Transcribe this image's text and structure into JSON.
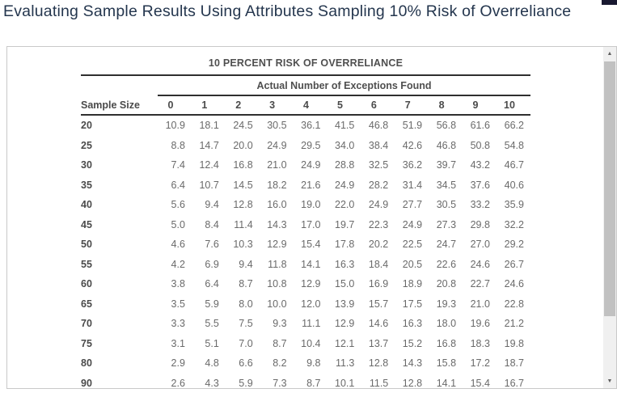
{
  "page": {
    "title": "Evaluating Sample Results Using Attributes Sampling 10% Risk of Overreliance"
  },
  "panel": {
    "table": {
      "title": "10 PERCENT RISK OF OVERRELIANCE",
      "span_header": "Actual Number of Exceptions Found",
      "row_header": "Sample Size",
      "columns": [
        "0",
        "1",
        "2",
        "3",
        "4",
        "5",
        "6",
        "7",
        "8",
        "9",
        "10"
      ],
      "rows": [
        {
          "sample_size": "20",
          "values": [
            "10.9",
            "18.1",
            "24.5",
            "30.5",
            "36.1",
            "41.5",
            "46.8",
            "51.9",
            "56.8",
            "61.6",
            "66.2"
          ]
        },
        {
          "sample_size": "25",
          "values": [
            "8.8",
            "14.7",
            "20.0",
            "24.9",
            "29.5",
            "34.0",
            "38.4",
            "42.6",
            "46.8",
            "50.8",
            "54.8"
          ]
        },
        {
          "sample_size": "30",
          "values": [
            "7.4",
            "12.4",
            "16.8",
            "21.0",
            "24.9",
            "28.8",
            "32.5",
            "36.2",
            "39.7",
            "43.2",
            "46.7"
          ]
        },
        {
          "sample_size": "35",
          "values": [
            "6.4",
            "10.7",
            "14.5",
            "18.2",
            "21.6",
            "24.9",
            "28.2",
            "31.4",
            "34.5",
            "37.6",
            "40.6"
          ]
        },
        {
          "sample_size": "40",
          "values": [
            "5.6",
            "9.4",
            "12.8",
            "16.0",
            "19.0",
            "22.0",
            "24.9",
            "27.7",
            "30.5",
            "33.2",
            "35.9"
          ]
        },
        {
          "sample_size": "45",
          "values": [
            "5.0",
            "8.4",
            "11.4",
            "14.3",
            "17.0",
            "19.7",
            "22.3",
            "24.9",
            "27.3",
            "29.8",
            "32.2"
          ]
        },
        {
          "sample_size": "50",
          "values": [
            "4.6",
            "7.6",
            "10.3",
            "12.9",
            "15.4",
            "17.8",
            "20.2",
            "22.5",
            "24.7",
            "27.0",
            "29.2"
          ]
        },
        {
          "sample_size": "55",
          "values": [
            "4.2",
            "6.9",
            "9.4",
            "11.8",
            "14.1",
            "16.3",
            "18.4",
            "20.5",
            "22.6",
            "24.6",
            "26.7"
          ]
        },
        {
          "sample_size": "60",
          "values": [
            "3.8",
            "6.4",
            "8.7",
            "10.8",
            "12.9",
            "15.0",
            "16.9",
            "18.9",
            "20.8",
            "22.7",
            "24.6"
          ]
        },
        {
          "sample_size": "65",
          "values": [
            "3.5",
            "5.9",
            "8.0",
            "10.0",
            "12.0",
            "13.9",
            "15.7",
            "17.5",
            "19.3",
            "21.0",
            "22.8"
          ]
        },
        {
          "sample_size": "70",
          "values": [
            "3.3",
            "5.5",
            "7.5",
            "9.3",
            "11.1",
            "12.9",
            "14.6",
            "16.3",
            "18.0",
            "19.6",
            "21.2"
          ]
        },
        {
          "sample_size": "75",
          "values": [
            "3.1",
            "5.1",
            "7.0",
            "8.7",
            "10.4",
            "12.1",
            "13.7",
            "15.2",
            "16.8",
            "18.3",
            "19.8"
          ]
        },
        {
          "sample_size": "80",
          "values": [
            "2.9",
            "4.8",
            "6.6",
            "8.2",
            "9.8",
            "11.3",
            "12.8",
            "14.3",
            "15.8",
            "17.2",
            "18.7"
          ]
        },
        {
          "sample_size": "90",
          "values": [
            "2.6",
            "4.3",
            "5.9",
            "7.3",
            "8.7",
            "10.1",
            "11.5",
            "12.8",
            "14.1",
            "15.4",
            "16.7"
          ]
        }
      ]
    }
  },
  "scrollbar": {
    "up_glyph": "▲",
    "down_glyph": "▼"
  },
  "colors": {
    "title_text": "#24364e",
    "table_bold_text": "#4a4a4a",
    "table_value_text": "#6a6a6a",
    "rule": "#2f2f2f",
    "panel_border": "#c9c9c9",
    "scrollbar_track": "#f0f0f0",
    "scrollbar_thumb": "#c1c1c1"
  }
}
